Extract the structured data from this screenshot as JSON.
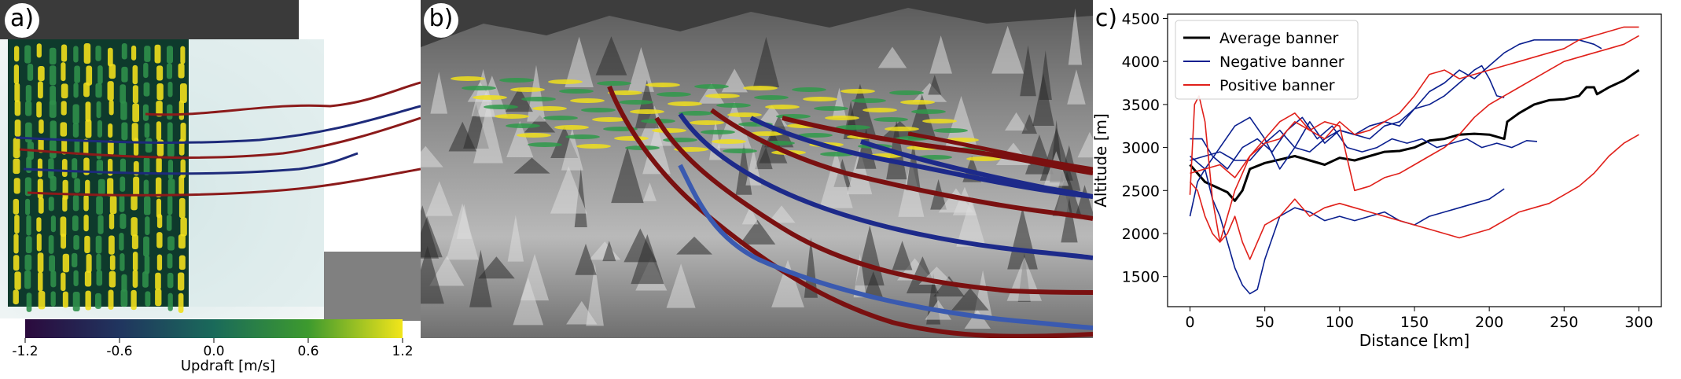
{
  "panel_a": {
    "letter": "a)",
    "colorbar": {
      "ticks": [
        "-1.2",
        "-0.6",
        "0.0",
        "0.6",
        "1.2"
      ],
      "label": "Updraft [m/s]",
      "colors": [
        "#2b0a3d",
        "#20355f",
        "#1a6a5a",
        "#3d9a2e",
        "#f2e51a"
      ]
    }
  },
  "panel_b": {
    "letter": "b)"
  },
  "panel_c": {
    "letter": "c)",
    "chart_data": {
      "type": "line",
      "xlabel": "Distance [km]",
      "ylabel": "Altitude [m]",
      "xlim": [
        -15,
        315
      ],
      "ylim": [
        1150,
        4550
      ],
      "xticks": [
        0,
        50,
        100,
        150,
        200,
        250,
        300
      ],
      "yticks": [
        1500,
        2000,
        2500,
        3000,
        3500,
        4000,
        4500
      ],
      "legend": [
        {
          "label": "Average banner",
          "color": "#000000"
        },
        {
          "label": "Negative banner",
          "color": "#0a1f8f"
        },
        {
          "label": "Positive banner",
          "color": "#e0201a"
        }
      ],
      "legend_position": "top-left",
      "series": [
        {
          "group": "average",
          "color": "#000000",
          "width": 3,
          "x": [
            0,
            10,
            20,
            25,
            30,
            35,
            40,
            50,
            60,
            70,
            80,
            90,
            100,
            110,
            120,
            130,
            140,
            150,
            160,
            170,
            180,
            190,
            200,
            210,
            212,
            220,
            230,
            240,
            250,
            260,
            265,
            270,
            272,
            280,
            290,
            300
          ],
          "y": [
            2800,
            2600,
            2520,
            2480,
            2380,
            2500,
            2750,
            2820,
            2860,
            2900,
            2850,
            2800,
            2880,
            2850,
            2900,
            2950,
            2960,
            3000,
            3080,
            3100,
            3150,
            3160,
            3150,
            3100,
            3300,
            3400,
            3500,
            3550,
            3560,
            3600,
            3700,
            3700,
            3620,
            3700,
            3780,
            3900
          ]
        },
        {
          "group": "negative",
          "color": "#0a1f8f",
          "width": 1.6,
          "x": [
            0,
            5,
            10,
            15,
            20,
            25,
            30,
            35,
            40,
            45,
            50,
            60,
            70,
            80,
            90,
            100,
            110,
            120,
            130,
            140,
            150,
            160,
            170,
            180,
            190,
            200,
            210
          ],
          "y": [
            2200,
            2600,
            2750,
            2400,
            2200,
            1900,
            1600,
            1400,
            1300,
            1350,
            1700,
            2200,
            2300,
            2250,
            2150,
            2200,
            2150,
            2200,
            2250,
            2150,
            2100,
            2200,
            2250,
            2300,
            2350,
            2400,
            2520
          ]
        },
        {
          "group": "negative",
          "color": "#0a1f8f",
          "width": 1.6,
          "x": [
            0,
            8,
            15,
            25,
            35,
            45,
            55,
            65,
            75,
            85,
            95,
            105,
            115,
            125,
            135,
            145,
            155,
            165,
            175,
            185,
            195,
            205,
            215,
            225,
            232
          ],
          "y": [
            3100,
            3100,
            2900,
            2750,
            3000,
            3100,
            2950,
            3200,
            3350,
            3100,
            3250,
            3000,
            2950,
            3000,
            3100,
            3050,
            3100,
            3000,
            3050,
            3100,
            3000,
            3050,
            3000,
            3080,
            3070
          ]
        },
        {
          "group": "negative",
          "color": "#0a1f8f",
          "width": 1.6,
          "x": [
            0,
            10,
            20,
            30,
            40,
            50,
            60,
            70,
            80,
            90,
            100,
            110,
            120,
            130,
            140,
            150,
            160,
            170,
            180,
            190,
            200,
            210,
            220,
            230,
            240,
            250,
            260,
            270,
            275
          ],
          "y": [
            2900,
            2750,
            3000,
            3250,
            3350,
            3100,
            2750,
            3000,
            3300,
            3050,
            3200,
            3150,
            3250,
            3300,
            3250,
            3450,
            3650,
            3750,
            3900,
            3800,
            3950,
            4100,
            4200,
            4250,
            4250,
            4250,
            4250,
            4200,
            4150
          ]
        },
        {
          "group": "negative",
          "color": "#0a1f8f",
          "width": 1.6,
          "x": [
            0,
            10,
            20,
            30,
            40,
            50,
            60,
            70,
            80,
            90,
            100,
            110,
            120,
            130,
            140,
            150,
            160,
            170,
            180,
            190,
            195,
            200,
            205,
            210
          ],
          "y": [
            2850,
            2900,
            2950,
            2850,
            2850,
            3050,
            3200,
            3000,
            2950,
            3100,
            3200,
            3150,
            3100,
            3250,
            3300,
            3450,
            3500,
            3600,
            3750,
            3900,
            3950,
            3800,
            3600,
            3580
          ]
        },
        {
          "group": "positive",
          "color": "#e0201a",
          "width": 1.6,
          "x": [
            0,
            3,
            6,
            10,
            15,
            20,
            25,
            30,
            35,
            40,
            50,
            60,
            70,
            80,
            90,
            100,
            110,
            120,
            130,
            140,
            150,
            160,
            170,
            180,
            190,
            200,
            210,
            220,
            230,
            240,
            250,
            260,
            270,
            280,
            290,
            300
          ],
          "y": [
            2450,
            3500,
            3600,
            3300,
            2400,
            1900,
            2000,
            2200,
            1900,
            1700,
            2100,
            2200,
            2400,
            2200,
            2300,
            2350,
            2300,
            2250,
            2200,
            2150,
            2100,
            2050,
            2000,
            1950,
            2000,
            2050,
            2150,
            2250,
            2300,
            2350,
            2450,
            2550,
            2700,
            2900,
            3050,
            3150
          ]
        },
        {
          "group": "positive",
          "color": "#e0201a",
          "width": 1.6,
          "x": [
            0,
            5,
            10,
            15,
            20,
            25,
            30,
            35,
            40,
            50,
            60,
            70,
            80,
            90,
            100,
            110,
            120,
            130,
            140,
            150,
            160,
            170,
            180,
            190,
            200,
            210,
            220,
            230,
            240,
            250,
            260,
            270,
            280,
            290,
            300
          ],
          "y": [
            2600,
            2500,
            2200,
            2000,
            1900,
            2200,
            2500,
            2700,
            2900,
            3050,
            3100,
            3300,
            3200,
            3300,
            3250,
            2500,
            2550,
            2650,
            2700,
            2800,
            2900,
            3000,
            3150,
            3350,
            3500,
            3600,
            3700,
            3800,
            3900,
            4000,
            4050,
            4100,
            4150,
            4200,
            4300
          ]
        },
        {
          "group": "positive",
          "color": "#e0201a",
          "width": 1.6,
          "x": [
            0,
            10,
            20,
            30,
            40,
            50,
            60,
            70,
            80,
            90,
            100,
            110,
            120,
            130,
            140,
            150,
            160,
            170,
            180,
            190,
            200,
            210,
            220,
            230,
            240,
            250,
            260,
            270,
            280,
            290,
            300
          ],
          "y": [
            2700,
            2750,
            2800,
            2650,
            2900,
            3100,
            3300,
            3400,
            3200,
            3100,
            3300,
            3150,
            3200,
            3300,
            3400,
            3600,
            3850,
            3900,
            3800,
            3850,
            3900,
            3950,
            4000,
            4050,
            4100,
            4150,
            4250,
            4300,
            4350,
            4400,
            4400
          ]
        }
      ]
    }
  }
}
